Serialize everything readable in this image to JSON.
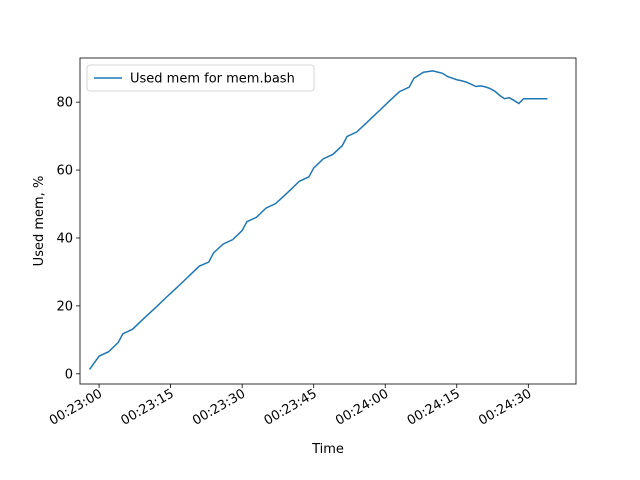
{
  "chart_data": {
    "type": "line",
    "title": "",
    "xlabel": "Time",
    "ylabel": "Used mem, %",
    "x_unit": "time (HH:MM:SS)",
    "xlim": [
      "00:22:56",
      "00:24:40"
    ],
    "ylim": [
      -3,
      93
    ],
    "yticks": [
      0,
      20,
      40,
      60,
      80
    ],
    "xticks": [
      "00:23:00",
      "00:23:15",
      "00:23:30",
      "00:23:45",
      "00:24:00",
      "00:24:15",
      "00:24:30"
    ],
    "grid": false,
    "legend": {
      "position": "top-left"
    },
    "series": [
      {
        "name": "Used mem for mem.bash",
        "color": "#1f77b4",
        "x": [
          "00:22:58",
          "00:23:00",
          "00:23:02",
          "00:23:04",
          "00:23:05",
          "00:23:07",
          "00:23:09",
          "00:23:11",
          "00:23:12",
          "00:23:14",
          "00:23:16",
          "00:23:17",
          "00:23:19",
          "00:23:21",
          "00:23:23",
          "00:23:24",
          "00:23:26",
          "00:23:28",
          "00:23:30",
          "00:23:31",
          "00:23:33",
          "00:23:35",
          "00:23:37",
          "00:23:38",
          "00:23:40",
          "00:23:42",
          "00:23:44",
          "00:23:45",
          "00:23:47",
          "00:23:49",
          "00:23:51",
          "00:23:52",
          "00:23:54",
          "00:23:56",
          "00:23:58",
          "00:23:59",
          "00:24:01",
          "00:24:03",
          "00:24:05",
          "00:24:06",
          "00:24:08",
          "00:24:10",
          "00:24:12",
          "00:24:13",
          "00:24:15",
          "00:24:16",
          "00:24:17",
          "00:24:18",
          "00:24:19",
          "00:24:20",
          "00:24:21",
          "00:24:22",
          "00:24:23",
          "00:24:24",
          "00:24:25",
          "00:24:26",
          "00:24:27",
          "00:24:28",
          "00:24:29",
          "00:24:30",
          "00:24:31",
          "00:24:32",
          "00:24:33",
          "00:24:34"
        ],
        "y": [
          1.3,
          5.2,
          6.5,
          9.2,
          11.8,
          13.1,
          15.8,
          18.4,
          19.7,
          22.4,
          25.0,
          26.3,
          29.0,
          31.7,
          32.9,
          35.6,
          38.2,
          39.5,
          42.2,
          44.8,
          46.1,
          48.8,
          50.1,
          51.4,
          54.0,
          56.7,
          58.0,
          60.6,
          63.3,
          64.6,
          67.2,
          69.9,
          71.2,
          73.8,
          76.5,
          77.8,
          80.5,
          83.1,
          84.4,
          87.0,
          88.8,
          89.2,
          88.5,
          87.6,
          86.6,
          86.3,
          85.9,
          85.3,
          84.6,
          84.8,
          84.5,
          84.0,
          83.2,
          82.0,
          81.0,
          81.3,
          80.5,
          79.6,
          81.0,
          81.0,
          81.0,
          81.0,
          81.0,
          81.0
        ]
      }
    ]
  }
}
